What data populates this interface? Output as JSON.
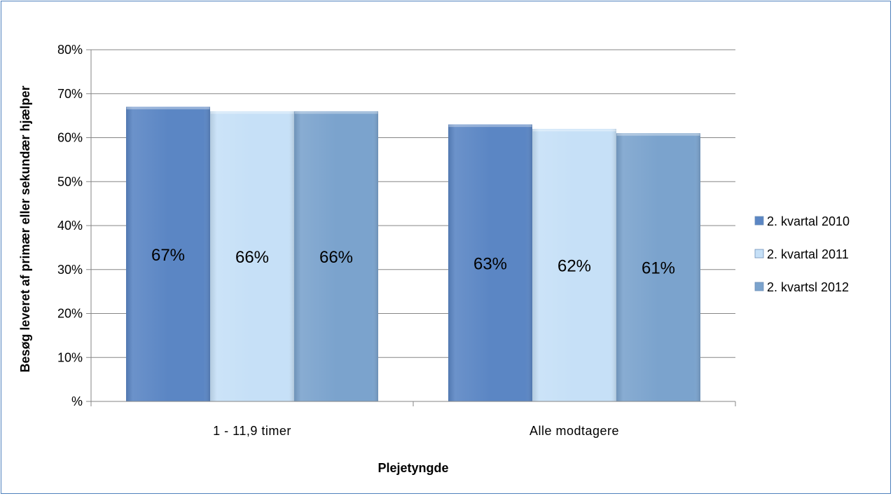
{
  "chart_data": {
    "type": "bar",
    "categories": [
      "1 - 11,9 timer",
      "Alle modtagere"
    ],
    "series": [
      {
        "name": "2. kvartal 2010",
        "values": [
          0.67,
          0.63
        ],
        "labels": [
          "67%",
          "63%"
        ],
        "color": "#5b86c4"
      },
      {
        "name": "2. kvartal 2011",
        "values": [
          0.66,
          0.62
        ],
        "labels": [
          "66%",
          "62%"
        ],
        "color": "#c6e0f7"
      },
      {
        "name": "2. kvartsl 2012",
        "values": [
          0.66,
          0.61
        ],
        "labels": [
          "66%",
          "61%"
        ],
        "color": "#7ba3cd"
      }
    ],
    "xlabel": "Plejetyngde",
    "ylabel": "Besøg leveret af primær eller sekundær hjælper",
    "ylim": [
      0,
      0.8
    ],
    "yticks": [
      {
        "value": 0,
        "label": "%"
      },
      {
        "value": 0.1,
        "label": "10%"
      },
      {
        "value": 0.2,
        "label": "20%"
      },
      {
        "value": 0.3,
        "label": "30%"
      },
      {
        "value": 0.4,
        "label": "40%"
      },
      {
        "value": 0.5,
        "label": "50%"
      },
      {
        "value": 0.6,
        "label": "60%"
      },
      {
        "value": 0.7,
        "label": "70%"
      },
      {
        "value": 0.8,
        "label": "80%"
      }
    ],
    "grid": true,
    "legend_position": "right"
  },
  "colors": {
    "border": "#4f81bd",
    "gridline": "#868686"
  }
}
